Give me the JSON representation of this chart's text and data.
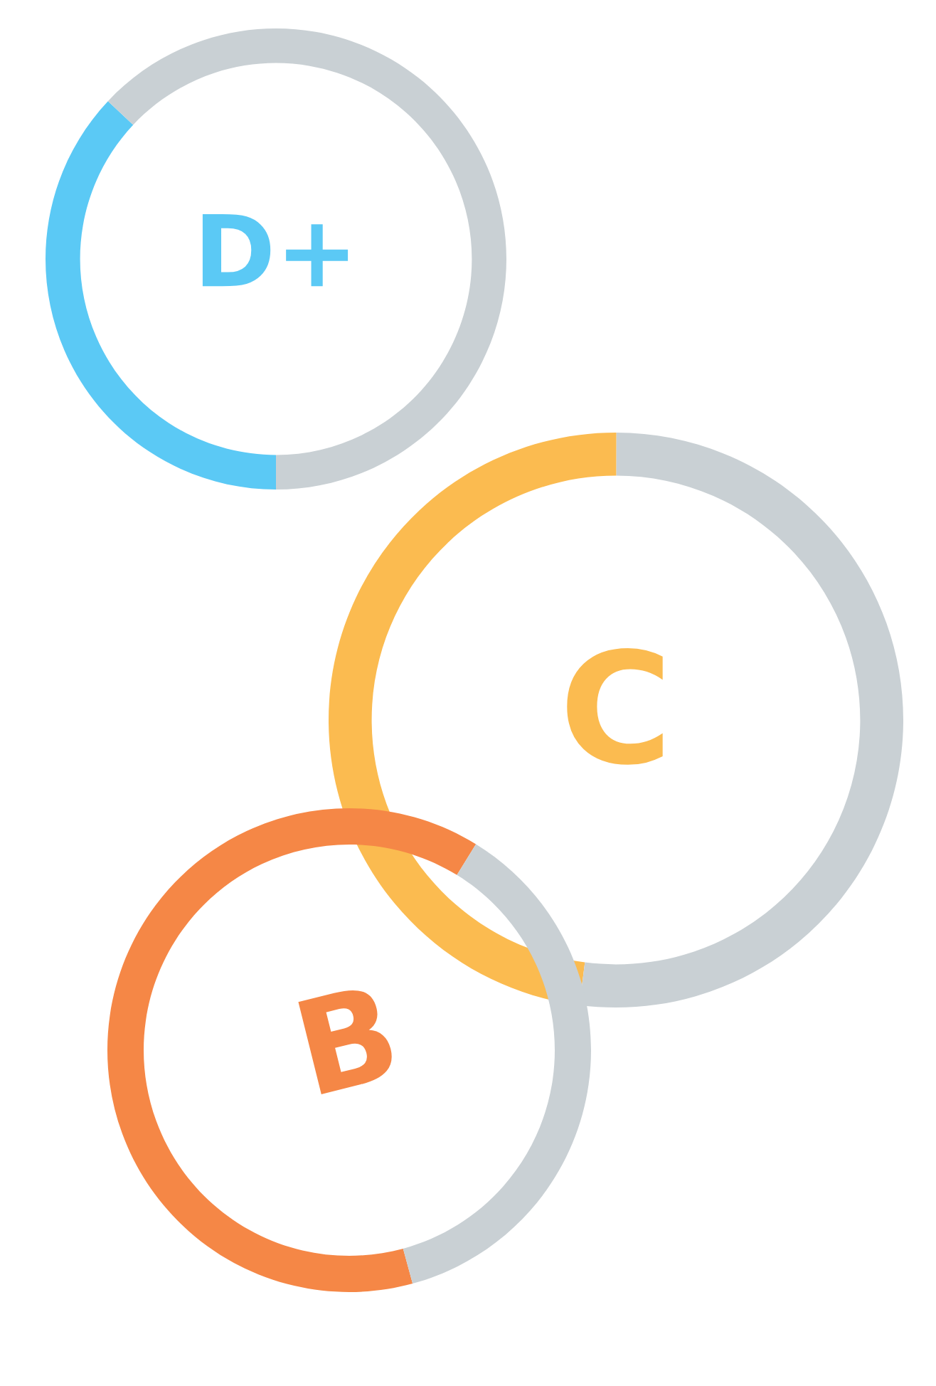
{
  "chart_data": [
    {
      "type": "donut",
      "categories": [
        null,
        null
      ],
      "values": [
        37,
        63
      ],
      "colors": [
        "#5bc9f5",
        "#c9d0d4"
      ],
      "annotations": [
        "D+"
      ]
    },
    {
      "type": "donut",
      "categories": [
        null,
        null
      ],
      "values": [
        48,
        52
      ],
      "colors": [
        "#fbbb50",
        "#c9d0d4"
      ],
      "annotations": [
        "C"
      ]
    },
    {
      "type": "donut",
      "categories": [
        null,
        null
      ],
      "values": [
        63,
        37
      ],
      "colors": [
        "#f58746",
        "#c9d0d4"
      ],
      "annotations": [
        "B"
      ]
    }
  ]
}
